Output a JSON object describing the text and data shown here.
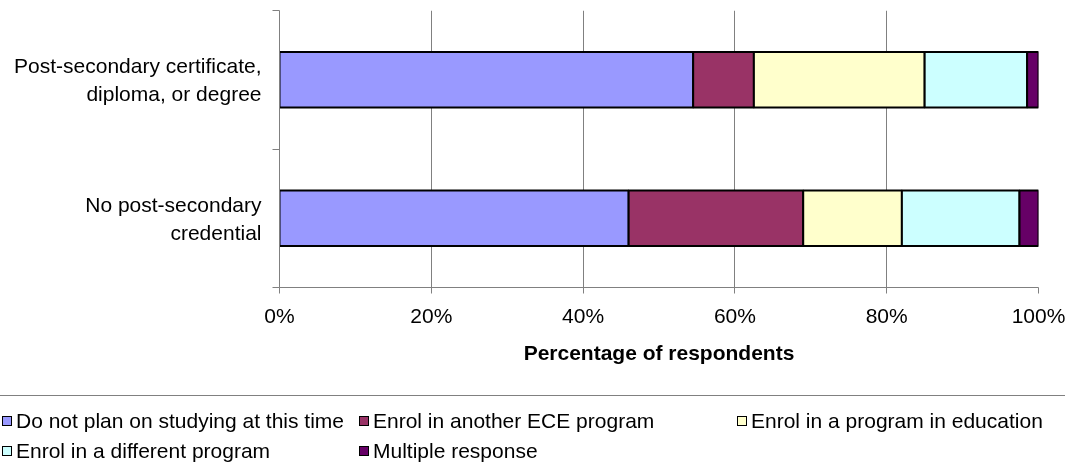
{
  "chart_data": {
    "type": "bar",
    "orientation": "horizontal",
    "stacked": true,
    "categories": [
      "Post-secondary certificate, diploma, or degree",
      "No post-secondary credential"
    ],
    "series": [
      {
        "name": "Do not plan on studying at this time",
        "color": "#9999ff",
        "values": [
          54.5,
          46
        ]
      },
      {
        "name": "Enrol in another ECE program",
        "color": "#993366",
        "values": [
          8,
          23
        ]
      },
      {
        "name": "Enrol in a program in education",
        "color": "#ffffcc",
        "values": [
          22.5,
          13
        ]
      },
      {
        "name": "Enrol in a different program",
        "color": "#ccffff",
        "values": [
          13.5,
          15.5
        ]
      },
      {
        "name": "Multiple response",
        "color": "#660066",
        "values": [
          1.5,
          2.5
        ]
      }
    ],
    "xlim": [
      0,
      100
    ],
    "xticks": [
      {
        "value": 0,
        "label": "0%"
      },
      {
        "value": 20,
        "label": "20%"
      },
      {
        "value": 40,
        "label": "40%"
      },
      {
        "value": 60,
        "label": "60%"
      },
      {
        "value": 80,
        "label": "80%"
      },
      {
        "value": 100,
        "label": "100%"
      }
    ],
    "xlabel": "Percentage of respondents",
    "grid": "x",
    "legend": "bottom"
  }
}
